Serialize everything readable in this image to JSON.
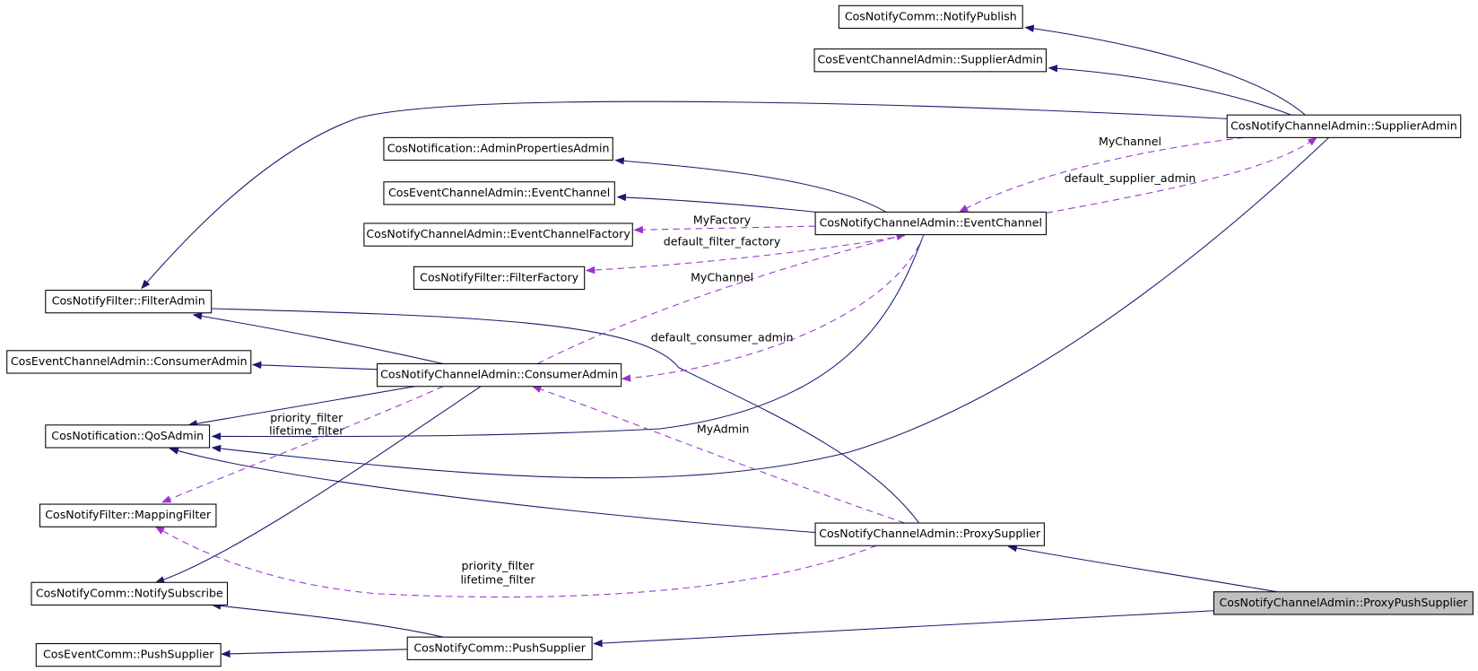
{
  "nodes": [
    {
      "label": "CosNotifyComm::NotifyPublish"
    },
    {
      "label": "CosEventChannelAdmin::SupplierAdmin"
    },
    {
      "label": "CosNotifyChannelAdmin::SupplierAdmin"
    },
    {
      "label": "CosNotification::AdminPropertiesAdmin"
    },
    {
      "label": "CosEventChannelAdmin::EventChannel"
    },
    {
      "label": "CosNotifyChannelAdmin::EventChannel"
    },
    {
      "label": "CosNotifyChannelAdmin::EventChannelFactory"
    },
    {
      "label": "CosNotifyFilter::FilterFactory"
    },
    {
      "label": "CosNotifyFilter::FilterAdmin"
    },
    {
      "label": "CosEventChannelAdmin::ConsumerAdmin"
    },
    {
      "label": "CosNotifyChannelAdmin::ConsumerAdmin"
    },
    {
      "label": "CosNotification::QoSAdmin"
    },
    {
      "label": "CosNotifyFilter::MappingFilter"
    },
    {
      "label": "CosNotifyChannelAdmin::ProxySupplier"
    },
    {
      "label": "CosNotifyComm::NotifySubscribe"
    },
    {
      "label": "CosNotifyChannelAdmin::ProxyPushSupplier"
    },
    {
      "label": "CosEventComm::PushSupplier"
    },
    {
      "label": "CosNotifyComm::PushSupplier"
    }
  ],
  "edge_labels": [
    "MyChannel",
    "default_supplier_admin",
    "MyFactory",
    "default_filter_factory",
    "MyChannel",
    "default_consumer_admin",
    "priority_filter",
    "lifetime_filter",
    "MyAdmin",
    "priority_filter",
    "lifetime_filter"
  ]
}
